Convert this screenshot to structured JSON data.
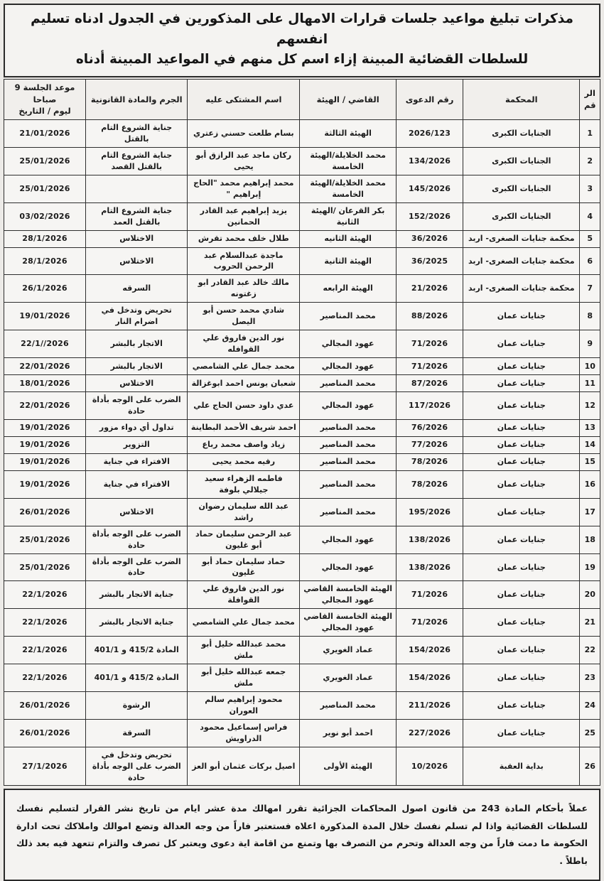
{
  "title": {
    "line1": "مذكرات تبليغ مواعيد جلسات قرارات الامهال على المذكورين في الجدول ادناه تسليم انفسهم",
    "line2": "للسلطات القضائية المبينة إزاء اسم كل منهم في المواعيد المبينة أدناه"
  },
  "table": {
    "headers": {
      "num": "الرقم",
      "court": "المحكمة",
      "case_no": "رقم الدعوى",
      "judge": "القاضي / الهيئة",
      "defendant": "اسم المشتكى عليه",
      "crime": "الجرم والمادة القانونية",
      "session_line1": "موعد الجلسة 9 صباحا",
      "session_line2": "ليوم / التاريخ"
    },
    "rows": [
      {
        "num": "1",
        "court": "الجنايات الكبرى",
        "case_no": "2026/123",
        "judge": "الهيئة الثالثة",
        "defendant": "بسام طلعت حسني زعتري",
        "crime": "جناية الشروع التام بالقتل",
        "date": "21/01/2026"
      },
      {
        "num": "2",
        "court": "الجنايات الكبرى",
        "case_no": "134/2026",
        "judge": "محمد الخلايلة/الهيئة الخامسة",
        "defendant": "ركان ماجد عبد الرازق أبو يحيى",
        "crime": "جناية الشروع التام بالقتل القصد",
        "date": "25/01/2026"
      },
      {
        "num": "3",
        "court": "الجنايات الكبرى",
        "case_no": "145/2026",
        "judge": "محمد الخلايلة/الهيئة الخامسة",
        "defendant": "محمد إبراهيم محمد \"الحاج إبراهيم \"",
        "crime": "",
        "date": "25/01/2026"
      },
      {
        "num": "4",
        "court": "الجنايات الكبرى",
        "case_no": "152/2026",
        "judge": "بكر القرعان /الهيئة الثانية",
        "defendant": "يزيد إبراهيم عبد القادر الحمانين",
        "crime": "جناية الشروع التام بالقتل العمد",
        "date": "03/02/2026"
      },
      {
        "num": "5",
        "court": "محكمة جنايات الصغرى- اربد",
        "case_no": "36/2026",
        "judge": "الهيئة الثانيه",
        "defendant": "طلال خلف محمد تقرش",
        "crime": "الاختلاس",
        "date": "28/1/2026"
      },
      {
        "num": "6",
        "court": "محكمة جنايات الصغرى- اربد",
        "case_no": "36/2025",
        "judge": "الهيئة الثانية",
        "defendant": "ماجدة عبدالسلام عبد الرحمن الحروب",
        "crime": "الاختلاس",
        "date": "28/1/2026"
      },
      {
        "num": "7",
        "court": "محكمة جنايات الصغرى- اربد",
        "case_no": "21/2026",
        "judge": "الهيئة الرابعه",
        "defendant": "مالك خالد عبد القادر ابو زغتونه",
        "crime": "السرقه",
        "date": "26/1/2026"
      },
      {
        "num": "8",
        "court": "جنايات عمان",
        "case_no": "88/2026",
        "judge": "محمد المناصير",
        "defendant": "شادي محمد حسن أبو اليصل",
        "crime": "تحريض وتدخل في اضرام النار",
        "date": "19/01/2026"
      },
      {
        "num": "9",
        "court": "جنايات عمان",
        "case_no": "71/2026",
        "judge": "عهود المجالي",
        "defendant": "نور الدين فاروق علي القوافله",
        "crime": "الاتجار بالبشر",
        "date": "22/1//2026"
      },
      {
        "num": "10",
        "court": "جنايات عمان",
        "case_no": "71/2026",
        "judge": "عهود المجالي",
        "defendant": "محمد جمال علي الشامصي",
        "crime": "الاتجار بالبشر",
        "date": "22/01/2026"
      },
      {
        "num": "11",
        "court": "جنايات عمان",
        "case_no": "87/2026",
        "judge": "محمد المناصير",
        "defendant": "شعبان يونس احمد ابوغزالة",
        "crime": "الاختلاس",
        "date": "18/01/2026"
      },
      {
        "num": "12",
        "court": "جنايات عمان",
        "case_no": "117/2026",
        "judge": "عهود المجالي",
        "defendant": "عدي داود حسن الحاج علي",
        "crime": "الضرب على الوجه بأداة حادة",
        "date": "22/01/2026"
      },
      {
        "num": "13",
        "court": "جنايات عمان",
        "case_no": "76/2026",
        "judge": "محمد المناصير",
        "defendant": "احمد شريف الأحمد البطاينة",
        "crime": "تداول أي دواء مزور",
        "date": "19/01/2026"
      },
      {
        "num": "14",
        "court": "جنايات عمان",
        "case_no": "77/2026",
        "judge": "محمد المناصير",
        "defendant": "زياد واصف محمد رباع",
        "crime": "التزوير",
        "date": "19/01/2026"
      },
      {
        "num": "15",
        "court": "جنايات عمان",
        "case_no": "78/2026",
        "judge": "محمد المناصير",
        "defendant": "رقيه محمد يحيى",
        "crime": "الافتراء في جناية",
        "date": "19/01/2026"
      },
      {
        "num": "16",
        "court": "جنايات عمان",
        "case_no": "78/2026",
        "judge": "محمد المناصير",
        "defendant": "فاطمه الزهراء سعيد جيلالي بلوفة",
        "crime": "الافتراء في جناية",
        "date": "19/01/2026"
      },
      {
        "num": "17",
        "court": "جنايات عمان",
        "case_no": "195/2026",
        "judge": "محمد المناصير",
        "defendant": "عبد الله سليمان رضوان راشد",
        "crime": "الاختلاس",
        "date": "26/01/2026"
      },
      {
        "num": "18",
        "court": "جنايات عمان",
        "case_no": "138/2026",
        "judge": "عهود المجالي",
        "defendant": "عبد الرحمن سليمان حماد أبو غليون",
        "crime": "الضرب على الوجه بأداة حادة",
        "date": "25/01/2026"
      },
      {
        "num": "19",
        "court": "جنايات عمان",
        "case_no": "138/2026",
        "judge": "عهود المجالي",
        "defendant": "حماد سليمان حماد أبو غليون",
        "crime": "الضرب على الوجه بأداة حادة",
        "date": "25/01/2026"
      },
      {
        "num": "20",
        "court": "جنايات عمان",
        "case_no": "71/2026",
        "judge": "الهيئة الخامسة القاضي عهود المجالي",
        "defendant": "نور الدين فاروق علي القوافلة",
        "crime": "جناية الاتجار بالبشر",
        "date": "22/1/2026"
      },
      {
        "num": "21",
        "court": "جنايات عمان",
        "case_no": "71/2026",
        "judge": "الهيئة الخامسة القاضي عهود المجالي",
        "defendant": "محمد جمال علي الشامصي",
        "crime": "جناية الاتجار بالبشر",
        "date": "22/1/2026"
      },
      {
        "num": "22",
        "court": "جنايات عمان",
        "case_no": "154/2026",
        "judge": "عماد الغويري",
        "defendant": "محمد عبدالله خليل أبو ملش",
        "crime": "المادة 415/2 و 401/1",
        "date": "22/1/2026"
      },
      {
        "num": "23",
        "court": "جنايات عمان",
        "case_no": "154/2026",
        "judge": "عماد الغويري",
        "defendant": "جمعه عبدالله خليل أبو ملش",
        "crime": "المادة 415/2 و 401/1",
        "date": "22/1/2026"
      },
      {
        "num": "24",
        "court": "جنايات عمان",
        "case_no": "211/2026",
        "judge": "محمد المناصير",
        "defendant": "محمود إبراهيم سالم العوران",
        "crime": "الرشوة",
        "date": "26/01/2026"
      },
      {
        "num": "25",
        "court": "جنايات عمان",
        "case_no": "227/2026",
        "judge": "احمد أبو نوير",
        "defendant": "فراس إسماعيل محمود الدراويش",
        "crime": "السرقة",
        "date": "26/01/2026"
      },
      {
        "num": "26",
        "court": "بداية العقبة",
        "case_no": "10/2026",
        "judge": "الهيئة الأولى",
        "defendant": "اصيل بركات عثمان أبو العز",
        "crime": "تحريض وتدخل في الضرب على الوجه بأداة حادة",
        "date": "27/1/2026"
      }
    ]
  },
  "footer": {
    "text": "عملاً بأحكام المادة 243 من قانون اصول المحاكمات الجزائية تقرر امهالك مدة عشر ايام من تاريخ نشر القرار لتسليم نفسك للسلطات القضائية واذا لم تسلم نفسك خلال المدة المذكورة اعلاه فستعتبر فاراً من وجه العدالة وتضع اموالك واملاكك تحت ادارة الحكومة ما دمت فاراً من وجه العدالة وتحرم من التصرف بها وتمنع من اقامة اية دعوى ويعتبر كل تصرف والتزام تتعهد فيه بعد ذلك باطلاً ."
  }
}
